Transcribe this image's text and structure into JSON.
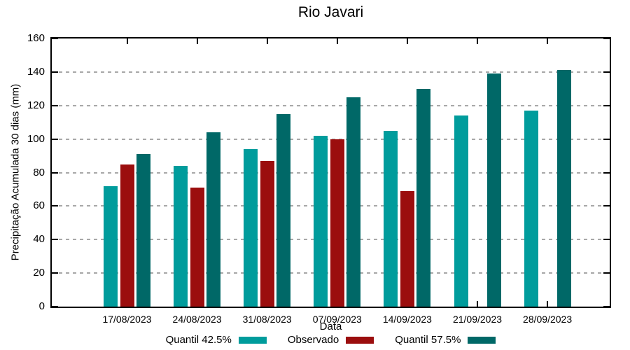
{
  "chart_data": {
    "type": "bar",
    "title": "Rio Javari",
    "xlabel": "Data",
    "ylabel": "Precipitação Acumulada 30 dias (mm)",
    "categories": [
      "17/08/2023",
      "24/08/2023",
      "31/08/2023",
      "07/09/2023",
      "14/09/2023",
      "21/09/2023",
      "28/09/2023"
    ],
    "series": [
      {
        "name": "Quantil 42.5%",
        "color": "#009C9C",
        "values": [
          72,
          84,
          94,
          102,
          105,
          114,
          117
        ]
      },
      {
        "name": "Observado",
        "color": "#9B0E0E",
        "values": [
          85,
          71,
          87,
          100,
          69,
          null,
          null
        ]
      },
      {
        "name": "Quantil 57.5%",
        "color": "#006867",
        "values": [
          91,
          104,
          115,
          125,
          130,
          139,
          141
        ]
      }
    ],
    "ylim": [
      0,
      160
    ],
    "yticks": [
      0,
      20,
      40,
      60,
      80,
      100,
      120,
      140,
      160
    ],
    "grid": "horizontal dashed gray",
    "legend_position": "bottom center",
    "frame": "full box with mirrored ticks"
  }
}
